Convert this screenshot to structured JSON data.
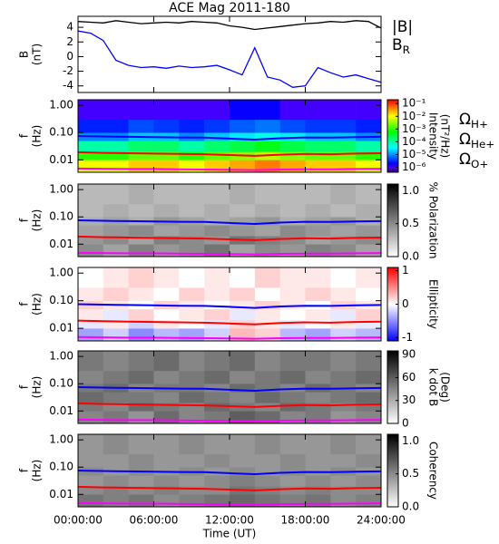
{
  "chart_data": [
    {
      "type": "line",
      "title": "ACE Mag 2011-180",
      "y_label": [
        "B",
        "(nT)"
      ],
      "x": [
        0,
        1,
        2,
        3,
        4,
        5,
        6,
        7,
        8,
        9,
        10,
        11,
        12,
        13,
        14,
        15,
        16,
        17,
        18,
        19,
        20,
        21,
        22,
        23,
        24
      ],
      "xlim": [
        0,
        24
      ],
      "ylim": [
        -4.9,
        5.5
      ],
      "yticks": [
        4,
        2,
        0,
        -2,
        -4
      ],
      "series": [
        {
          "name": "|B|",
          "color": "#000000",
          "values": [
            4.8,
            4.7,
            4.6,
            4.9,
            4.7,
            4.5,
            4.6,
            4.7,
            4.6,
            4.8,
            4.7,
            4.6,
            4.2,
            4.0,
            3.7,
            3.9,
            4.1,
            4.3,
            4.5,
            4.6,
            4.8,
            4.7,
            4.9,
            4.8,
            3.9
          ]
        },
        {
          "name": "BR",
          "color": "#0000ff",
          "values": [
            3.5,
            3.2,
            2.2,
            -0.5,
            -1.2,
            -1.5,
            -1.4,
            -1.6,
            -1.3,
            -1.5,
            -1.4,
            -1.2,
            -1.8,
            -2.5,
            1.2,
            -2.8,
            -3.2,
            -4.2,
            -4.0,
            -1.5,
            -2.2,
            -2.8,
            -2.5,
            -3.0,
            -3.5
          ]
        }
      ]
    },
    {
      "type": "heatmap",
      "y_label": [
        "f",
        "(Hz)"
      ],
      "log_y": true,
      "xlim": [
        0,
        24
      ],
      "ylim": [
        0.0035,
        1.6
      ],
      "yticks": [
        {
          "value": 1,
          "label": "1.00"
        },
        {
          "value": 0.1,
          "label": "0.10"
        },
        {
          "value": 0.01,
          "label": "0.01"
        }
      ],
      "xbins": [
        0,
        2,
        4,
        6,
        8,
        10,
        12,
        14,
        16,
        18,
        20,
        22,
        24
      ],
      "ybins": [
        0.0035,
        0.01,
        0.02,
        0.05,
        0.1,
        0.3,
        1.6
      ],
      "z": [
        [
          0.01,
          0.01,
          0.02,
          0.02,
          0.01,
          0.02,
          0.03,
          0.05,
          0.03,
          0.02,
          0.02,
          0.01
        ],
        [
          0.001,
          0.001,
          0.002,
          0.002,
          0.001,
          0.002,
          0.003,
          0.005,
          0.003,
          0.002,
          0.002,
          0.001
        ],
        [
          0.0001,
          0.0001,
          0.0002,
          0.0002,
          0.0001,
          0.0002,
          0.0003,
          0.0005,
          0.0003,
          0.0002,
          0.0002,
          0.0001
        ],
        [
          1e-05,
          1e-05,
          2e-05,
          2e-05,
          1e-05,
          2e-05,
          3e-05,
          5e-05,
          3e-05,
          2e-05,
          2e-05,
          1e-05
        ],
        [
          3e-06,
          3e-06,
          5e-06,
          4e-06,
          3e-06,
          4e-06,
          6e-06,
          8e-06,
          5e-06,
          4e-06,
          4e-06,
          3e-06
        ],
        [
          1e-06,
          1e-06,
          1e-06,
          1e-06,
          1e-06,
          1e-06,
          2e-06,
          2e-06,
          1e-06,
          1e-06,
          1e-06,
          1e-06
        ]
      ],
      "colorbar": {
        "label": [
          "Intensity",
          "(nT²/Hz)"
        ],
        "log": true,
        "colormap": "rainbow",
        "lim": [
          4e-07,
          0.2
        ],
        "ticks": [
          {
            "value": 0.1,
            "label": "10⁻¹"
          },
          {
            "value": 0.01,
            "label": "10⁻²"
          },
          {
            "value": 0.001,
            "label": "10⁻³"
          },
          {
            "value": 0.0001,
            "label": "10⁻⁴"
          },
          {
            "value": 1e-05,
            "label": "10⁻⁵"
          },
          {
            "value": 1e-06,
            "label": "10⁻⁶"
          }
        ]
      },
      "line_x": [
        0,
        2,
        4,
        6,
        8,
        10,
        12,
        14,
        16,
        18,
        20,
        22,
        24
      ],
      "series": [
        {
          "name": "ΩH+",
          "color": "#0000ff",
          "values": [
            0.075,
            0.072,
            0.07,
            0.068,
            0.066,
            0.065,
            0.06,
            0.055,
            0.062,
            0.066,
            0.065,
            0.068,
            0.07
          ]
        },
        {
          "name": "ΩHe+",
          "color": "#ff0000",
          "values": [
            0.019,
            0.018,
            0.0175,
            0.017,
            0.0165,
            0.016,
            0.015,
            0.014,
            0.0155,
            0.0165,
            0.016,
            0.017,
            0.0175
          ]
        },
        {
          "name": "ΩO+",
          "color": "#ff00ff",
          "values": [
            0.0048,
            0.0047,
            0.0046,
            0.0046,
            0.0045,
            0.0044,
            0.0043,
            0.0042,
            0.0044,
            0.0045,
            0.0045,
            0.0046,
            0.0047
          ]
        }
      ]
    },
    {
      "type": "heatmap",
      "y_label": [
        "f",
        "(Hz)"
      ],
      "log_y": true,
      "xlim": [
        0,
        24
      ],
      "ylim": [
        0.0035,
        1.6
      ],
      "yticks": [
        {
          "value": 1,
          "label": "1.00"
        },
        {
          "value": 0.1,
          "label": "0.10"
        },
        {
          "value": 0.01,
          "label": "0.01"
        }
      ],
      "xbins": [
        0,
        2,
        4,
        6,
        8,
        10,
        12,
        14,
        16,
        18,
        20,
        22,
        24
      ],
      "ybins": [
        0.0035,
        0.01,
        0.02,
        0.05,
        0.1,
        0.3,
        1.6
      ],
      "z": [
        [
          0.5,
          0.4,
          0.55,
          0.45,
          0.5,
          0.6,
          0.4,
          0.5,
          0.45,
          0.55,
          0.5,
          0.4
        ],
        [
          0.45,
          0.5,
          0.4,
          0.55,
          0.5,
          0.45,
          0.6,
          0.55,
          0.5,
          0.4,
          0.45,
          0.5
        ],
        [
          0.4,
          0.45,
          0.5,
          0.4,
          0.45,
          0.5,
          0.45,
          0.4,
          0.5,
          0.45,
          0.4,
          0.45
        ],
        [
          0.35,
          0.4,
          0.35,
          0.45,
          0.4,
          0.35,
          0.4,
          0.45,
          0.35,
          0.4,
          0.45,
          0.35
        ],
        [
          0.3,
          0.35,
          0.3,
          0.35,
          0.3,
          0.35,
          0.3,
          0.35,
          0.3,
          0.35,
          0.3,
          0.35
        ],
        [
          0.3,
          0.3,
          0.35,
          0.3,
          0.3,
          0.3,
          0.35,
          0.3,
          0.3,
          0.3,
          0.35,
          0.3
        ]
      ],
      "colorbar": {
        "label": [
          "% Polarization"
        ],
        "log": false,
        "colormap": "grey",
        "lim": [
          0,
          1.1
        ],
        "ticks": [
          {
            "value": 1,
            "label": "1.0"
          },
          {
            "value": 0.5,
            "label": "0.5"
          },
          {
            "value": 0,
            "label": "0.0"
          }
        ]
      }
    },
    {
      "type": "heatmap",
      "y_label": [
        "f",
        "(Hz)"
      ],
      "log_y": true,
      "xlim": [
        0,
        24
      ],
      "ylim": [
        0.0035,
        1.6
      ],
      "yticks": [
        {
          "value": 1,
          "label": "1.00"
        },
        {
          "value": 0.1,
          "label": "0.10"
        },
        {
          "value": 0.01,
          "label": "0.01"
        }
      ],
      "xbins": [
        0,
        2,
        4,
        6,
        8,
        10,
        12,
        14,
        16,
        18,
        20,
        22,
        24
      ],
      "ybins": [
        0.0035,
        0.01,
        0.02,
        0.05,
        0.1,
        0.3,
        1.6
      ],
      "z": [
        [
          -0.4,
          -0.2,
          -0.5,
          -0.3,
          -0.4,
          -0.2,
          0.3,
          0.2,
          -0.3,
          -0.4,
          -0.2,
          -0.3
        ],
        [
          -0.1,
          0.1,
          -0.2,
          0.1,
          0.0,
          -0.1,
          0.2,
          0.1,
          -0.1,
          0.0,
          0.1,
          -0.1
        ],
        [
          0.1,
          -0.1,
          0.2,
          0.0,
          0.1,
          0.2,
          -0.1,
          0.1,
          0.0,
          0.1,
          -0.1,
          0.2
        ],
        [
          0.2,
          0.1,
          0.0,
          0.2,
          0.1,
          0.0,
          0.1,
          0.2,
          0.1,
          0.0,
          0.2,
          0.1
        ],
        [
          0.1,
          0.2,
          0.1,
          0.0,
          0.2,
          0.1,
          0.2,
          0.0,
          0.1,
          0.2,
          0.1,
          0.0
        ],
        [
          0.0,
          0.1,
          0.2,
          0.1,
          0.0,
          0.1,
          0.0,
          0.2,
          0.1,
          0.1,
          0.0,
          0.1
        ]
      ],
      "colorbar": {
        "label": [
          "Ellipticity"
        ],
        "log": false,
        "colormap": "bluered",
        "lim": [
          -1.1,
          1.1
        ],
        "ticks": [
          1,
          0,
          -1
        ]
      }
    },
    {
      "type": "heatmap",
      "y_label": [
        "f",
        "(Hz)"
      ],
      "log_y": true,
      "xlim": [
        0,
        24
      ],
      "ylim": [
        0.0035,
        1.6
      ],
      "yticks": [
        {
          "value": 1,
          "label": "1.00"
        },
        {
          "value": 0.1,
          "label": "0.10"
        },
        {
          "value": 0.01,
          "label": "0.01"
        }
      ],
      "xbins": [
        0,
        2,
        4,
        6,
        8,
        10,
        12,
        14,
        16,
        18,
        20,
        22,
        24
      ],
      "ybins": [
        0.0035,
        0.01,
        0.02,
        0.05,
        0.1,
        0.3,
        1.6
      ],
      "z": [
        [
          45,
          50,
          40,
          55,
          45,
          50,
          60,
          55,
          45,
          50,
          40,
          45
        ],
        [
          50,
          45,
          55,
          50,
          45,
          55,
          50,
          45,
          55,
          50,
          45,
          50
        ],
        [
          55,
          50,
          50,
          45,
          55,
          50,
          45,
          55,
          50,
          45,
          50,
          55
        ],
        [
          50,
          55,
          45,
          50,
          50,
          45,
          55,
          50,
          45,
          55,
          50,
          45
        ],
        [
          45,
          50,
          55,
          45,
          50,
          55,
          45,
          50,
          55,
          45,
          50,
          55
        ],
        [
          50,
          45,
          50,
          55,
          45,
          50,
          55,
          45,
          50,
          50,
          45,
          50
        ]
      ],
      "colorbar": {
        "label": [
          "k dot B",
          "(Deg)"
        ],
        "log": false,
        "colormap": "grey",
        "lim": [
          0,
          95
        ],
        "ticks": [
          90,
          60,
          30,
          0
        ]
      }
    },
    {
      "type": "heatmap",
      "y_label": [
        "f",
        "(Hz)"
      ],
      "log_y": true,
      "xlim": [
        0,
        24
      ],
      "ylim": [
        0.0035,
        1.6
      ],
      "yticks": [
        {
          "value": 1,
          "label": "1.00"
        },
        {
          "value": 0.1,
          "label": "0.10"
        },
        {
          "value": 0.01,
          "label": "0.01"
        }
      ],
      "xbins": [
        0,
        2,
        4,
        6,
        8,
        10,
        12,
        14,
        16,
        18,
        20,
        22,
        24
      ],
      "ybins": [
        0.0035,
        0.01,
        0.02,
        0.05,
        0.1,
        0.3,
        1.6
      ],
      "z": [
        [
          0.6,
          0.55,
          0.6,
          0.5,
          0.55,
          0.6,
          0.65,
          0.6,
          0.55,
          0.6,
          0.5,
          0.55
        ],
        [
          0.5,
          0.55,
          0.5,
          0.55,
          0.5,
          0.5,
          0.6,
          0.55,
          0.5,
          0.55,
          0.5,
          0.5
        ],
        [
          0.45,
          0.5,
          0.45,
          0.5,
          0.45,
          0.5,
          0.55,
          0.5,
          0.45,
          0.5,
          0.45,
          0.5
        ],
        [
          0.5,
          0.45,
          0.5,
          0.45,
          0.5,
          0.45,
          0.5,
          0.45,
          0.5,
          0.45,
          0.5,
          0.45
        ],
        [
          0.45,
          0.45,
          0.5,
          0.45,
          0.45,
          0.5,
          0.45,
          0.45,
          0.5,
          0.45,
          0.45,
          0.5
        ],
        [
          0.45,
          0.5,
          0.45,
          0.45,
          0.5,
          0.45,
          0.45,
          0.5,
          0.45,
          0.45,
          0.5,
          0.45
        ]
      ],
      "colorbar": {
        "label": [
          "Coherency"
        ],
        "log": false,
        "colormap": "grey",
        "lim": [
          0,
          1.1
        ],
        "ticks": [
          {
            "value": 1,
            "label": "1.0"
          },
          {
            "value": 0.5,
            "label": "0.5"
          },
          {
            "value": 0,
            "label": "0.0"
          }
        ]
      },
      "x_label": "Time (UT)",
      "xticks": [
        {
          "value": 0,
          "label": "00:00:00"
        },
        {
          "value": 6,
          "label": "06:00:00"
        },
        {
          "value": 12,
          "label": "12:00:00"
        },
        {
          "value": 18,
          "label": "18:00:00"
        },
        {
          "value": 24,
          "label": "24:00:00"
        }
      ]
    }
  ]
}
